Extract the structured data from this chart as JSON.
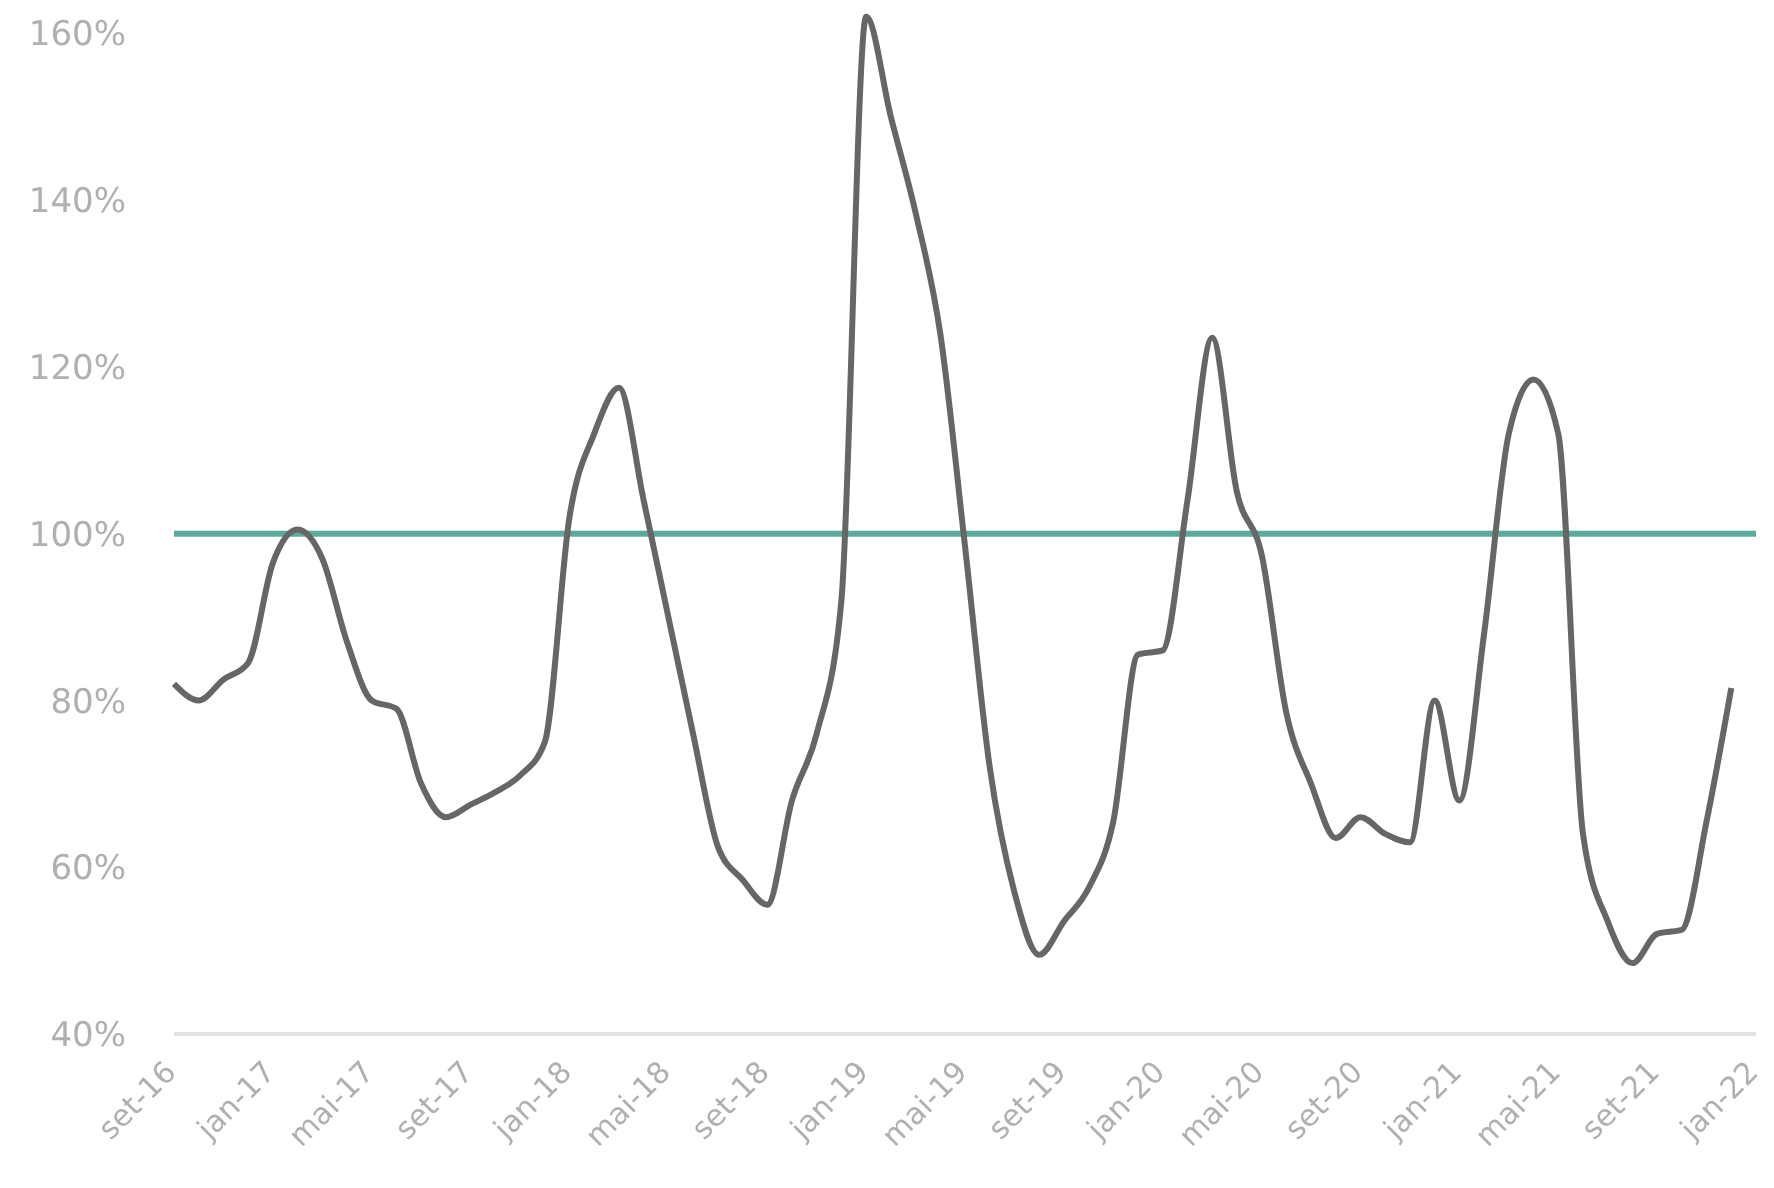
{
  "chart_data": {
    "type": "line",
    "categories": [
      "set-16",
      null,
      null,
      null,
      "jan-17",
      null,
      null,
      null,
      "mai-17",
      null,
      null,
      null,
      "set-17",
      null,
      null,
      null,
      "jan-18",
      null,
      null,
      null,
      "mai-18",
      null,
      null,
      null,
      "set-18",
      null,
      null,
      null,
      "jan-19",
      null,
      null,
      null,
      "mai-19",
      null,
      null,
      null,
      "set-19",
      null,
      null,
      null,
      "jan-20",
      null,
      null,
      null,
      "mai-20",
      null,
      null,
      null,
      "set-20",
      null,
      null,
      null,
      "jan-21",
      null,
      null,
      null,
      "mai-21",
      null,
      null,
      null,
      "set-21",
      null,
      null,
      null,
      "jan-22"
    ],
    "series": [
      {
        "color": "#666666",
        "values": [
          82,
          80,
          82.5,
          84.5,
          96.5,
          100.5,
          97,
          87,
          80,
          79,
          70,
          66,
          67.5,
          69,
          71,
          75,
          102,
          112,
          117.5,
          104,
          90,
          76,
          62.5,
          58.5,
          55.5,
          68,
          76,
          92,
          162,
          150,
          138.5,
          124,
          98.5,
          72,
          57,
          49.5,
          53.5,
          57.5,
          65.5,
          85.5,
          86,
          104,
          123.5,
          105,
          97.5,
          78.5,
          70,
          63.5,
          66,
          64,
          63,
          80,
          68,
          88,
          112,
          118.5,
          112,
          64,
          53.5,
          48.5,
          52,
          52.5,
          65.5,
          81.5,
          null
        ]
      }
    ],
    "ylim": [
      40,
      164
    ],
    "yticks": [
      {
        "value": 40,
        "label": "40%"
      },
      {
        "value": 60,
        "label": "60%"
      },
      {
        "value": 80,
        "label": "80%"
      },
      {
        "value": 100,
        "label": "100%"
      },
      {
        "value": 120,
        "label": "120%"
      },
      {
        "value": 140,
        "label": "140%"
      },
      {
        "value": 160,
        "label": "160%"
      }
    ],
    "ref_lines": [
      {
        "axis": "y",
        "value": 100,
        "color": "#5aab9c"
      }
    ],
    "grid": false,
    "legend": false,
    "marker": "none",
    "line_style": "solid"
  }
}
